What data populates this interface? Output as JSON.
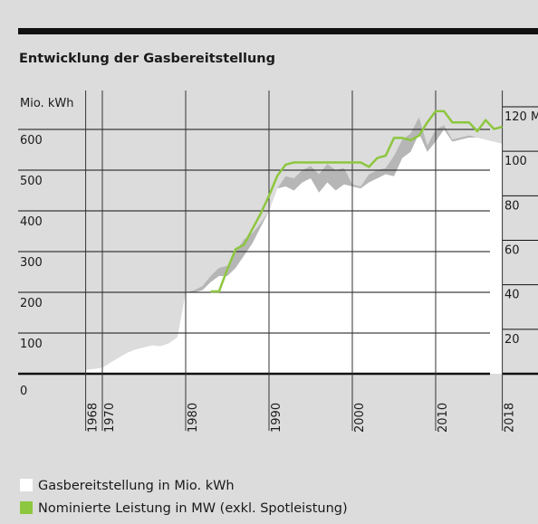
{
  "chart_data": {
    "type": "area",
    "title": "Entwicklung der Gasbereitstellung",
    "ylabel": "Mio. kWh",
    "x": [
      1968,
      1969,
      1970,
      1971,
      1972,
      1973,
      1974,
      1975,
      1976,
      1977,
      1978,
      1979,
      1980,
      1981,
      1982,
      1983,
      1984,
      1985,
      1986,
      1987,
      1988,
      1989,
      1990,
      1991,
      1992,
      1993,
      1994,
      1995,
      1996,
      1997,
      1998,
      1999,
      2000,
      2001,
      2002,
      2003,
      2004,
      2005,
      2006,
      2007,
      2008,
      2009,
      2010,
      2011,
      2012,
      2013,
      2014,
      2015,
      2016,
      2017,
      2018
    ],
    "xlim": [
      1968,
      2018
    ],
    "xticks": [
      1968,
      1970,
      1980,
      1990,
      2000,
      2010,
      2018
    ],
    "ylim": [
      0,
      600
    ],
    "yticks": [
      0,
      100,
      200,
      300,
      400,
      500,
      600
    ],
    "y2lim": [
      0,
      120
    ],
    "y2ticks": [
      20,
      40,
      60,
      80,
      100,
      {
        "value": 120,
        "label": "120 M"
      }
    ],
    "grid": true,
    "series": [
      {
        "color": "#b6b6b6",
        "values": [
          10,
          12,
          15,
          28,
          40,
          52,
          60,
          65,
          70,
          68,
          75,
          90,
          200,
          205,
          215,
          240,
          260,
          265,
          300,
          330,
          345,
          370,
          400,
          455,
          485,
          480,
          500,
          510,
          490,
          515,
          500,
          505,
          465,
          460,
          490,
          500,
          505,
          535,
          575,
          590,
          630,
          560,
          600,
          610,
          575,
          580,
          585,
          580,
          575,
          570,
          565
        ]
      },
      {
        "name": "Gasbereitstellung in Mio. kWh",
        "color": "#ffffff",
        "values": [
          10,
          12,
          15,
          28,
          40,
          52,
          60,
          65,
          70,
          68,
          75,
          90,
          200,
          200,
          205,
          225,
          240,
          240,
          260,
          290,
          320,
          360,
          400,
          455,
          460,
          450,
          470,
          480,
          445,
          470,
          450,
          465,
          460,
          455,
          470,
          480,
          490,
          485,
          530,
          545,
          590,
          545,
          570,
          600,
          570,
          575,
          580,
          580,
          575,
          570,
          565
        ]
      },
      {
        "name": "Nominierte Leistung in MW (exkl. Spotleistung)",
        "color": "#8dc63f",
        "axis": "y2",
        "values": [
          null,
          null,
          null,
          null,
          null,
          null,
          null,
          null,
          null,
          null,
          null,
          null,
          null,
          null,
          null,
          37,
          37,
          47,
          56,
          58,
          65,
          72,
          80,
          89,
          94,
          95,
          95,
          95,
          95,
          95,
          95,
          95,
          95,
          95,
          93,
          97,
          98,
          106,
          106,
          105,
          107,
          113,
          118,
          118,
          113,
          113,
          113,
          109,
          114,
          110,
          111
        ]
      }
    ]
  }
}
